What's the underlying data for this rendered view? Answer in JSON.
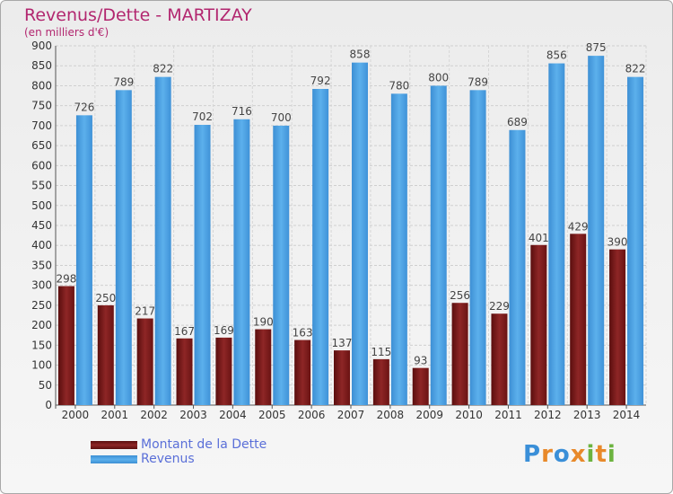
{
  "header": {
    "title": "Revenus/Dette - MARTIZAY",
    "subtitle": "(en milliers d'€)"
  },
  "chart_data": {
    "type": "bar",
    "title": "Revenus/Dette - MARTIZAY",
    "ylabel": "(en milliers d'€)",
    "xlabel": "",
    "ylim": [
      0,
      900
    ],
    "yticks": [
      0,
      50,
      100,
      150,
      200,
      250,
      300,
      350,
      400,
      450,
      500,
      550,
      600,
      650,
      700,
      750,
      800,
      850,
      900
    ],
    "categories": [
      "2000",
      "2001",
      "2002",
      "2003",
      "2004",
      "2005",
      "2006",
      "2007",
      "2008",
      "2009",
      "2010",
      "2011",
      "2012",
      "2013",
      "2014"
    ],
    "series": [
      {
        "name": "Montant de la Dette",
        "color": "#8b1c1c",
        "values": [
          298,
          250,
          217,
          167,
          169,
          190,
          163,
          137,
          115,
          93,
          256,
          229,
          401,
          429,
          390
        ]
      },
      {
        "name": "Revenus",
        "color": "#4a9fe0",
        "values": [
          726,
          789,
          822,
          702,
          716,
          700,
          792,
          858,
          780,
          800,
          789,
          689,
          856,
          875,
          822
        ]
      }
    ],
    "legend": "bottom-left",
    "grid": true
  },
  "branding": {
    "logo_text": "Proxiti"
  }
}
